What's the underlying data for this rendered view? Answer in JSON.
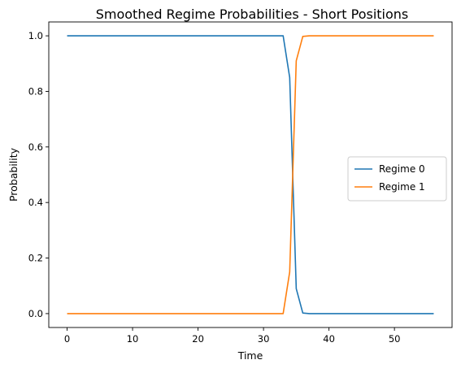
{
  "chart_data": {
    "type": "line",
    "title": "Smoothed Regime Probabilities - Short Positions",
    "xlabel": "Time",
    "ylabel": "Probability",
    "xlim": [
      -2.8,
      58.8
    ],
    "ylim": [
      -0.05,
      1.05
    ],
    "x_ticks": [
      0,
      10,
      20,
      30,
      40,
      50
    ],
    "y_ticks": [
      0.0,
      0.2,
      0.4,
      0.6,
      0.8,
      1.0
    ],
    "x_tick_labels": [
      "0",
      "10",
      "20",
      "30",
      "40",
      "50"
    ],
    "y_tick_labels": [
      "0.0",
      "0.2",
      "0.4",
      "0.6",
      "0.8",
      "1.0"
    ],
    "grid": false,
    "legend_position": "center-right",
    "x": [
      0,
      1,
      2,
      3,
      4,
      5,
      6,
      7,
      8,
      9,
      10,
      11,
      12,
      13,
      14,
      15,
      16,
      17,
      18,
      19,
      20,
      21,
      22,
      23,
      24,
      25,
      26,
      27,
      28,
      29,
      30,
      31,
      32,
      33,
      34,
      35,
      36,
      37,
      38,
      39,
      40,
      41,
      42,
      43,
      44,
      45,
      46,
      47,
      48,
      49,
      50,
      51,
      52,
      53,
      54,
      55,
      56
    ],
    "series": [
      {
        "name": "Regime 0",
        "color": "#1f77b4",
        "values": [
          1,
          1,
          1,
          1,
          1,
          1,
          1,
          1,
          1,
          1,
          1,
          1,
          1,
          1,
          1,
          1,
          1,
          1,
          1,
          1,
          1,
          1,
          1,
          1,
          1,
          1,
          1,
          1,
          1,
          1,
          1,
          1,
          1,
          1,
          0.85,
          0.09,
          0.002,
          0,
          0,
          0,
          0,
          0,
          0,
          0,
          0,
          0,
          0,
          0,
          0,
          0,
          0,
          0,
          0,
          0,
          0,
          0,
          0
        ]
      },
      {
        "name": "Regime 1",
        "color": "#ff7f0e",
        "values": [
          0,
          0,
          0,
          0,
          0,
          0,
          0,
          0,
          0,
          0,
          0,
          0,
          0,
          0,
          0,
          0,
          0,
          0,
          0,
          0,
          0,
          0,
          0,
          0,
          0,
          0,
          0,
          0,
          0,
          0,
          0,
          0,
          0,
          0,
          0.15,
          0.91,
          0.998,
          1,
          1,
          1,
          1,
          1,
          1,
          1,
          1,
          1,
          1,
          1,
          1,
          1,
          1,
          1,
          1,
          1,
          1,
          1,
          1
        ]
      }
    ]
  }
}
